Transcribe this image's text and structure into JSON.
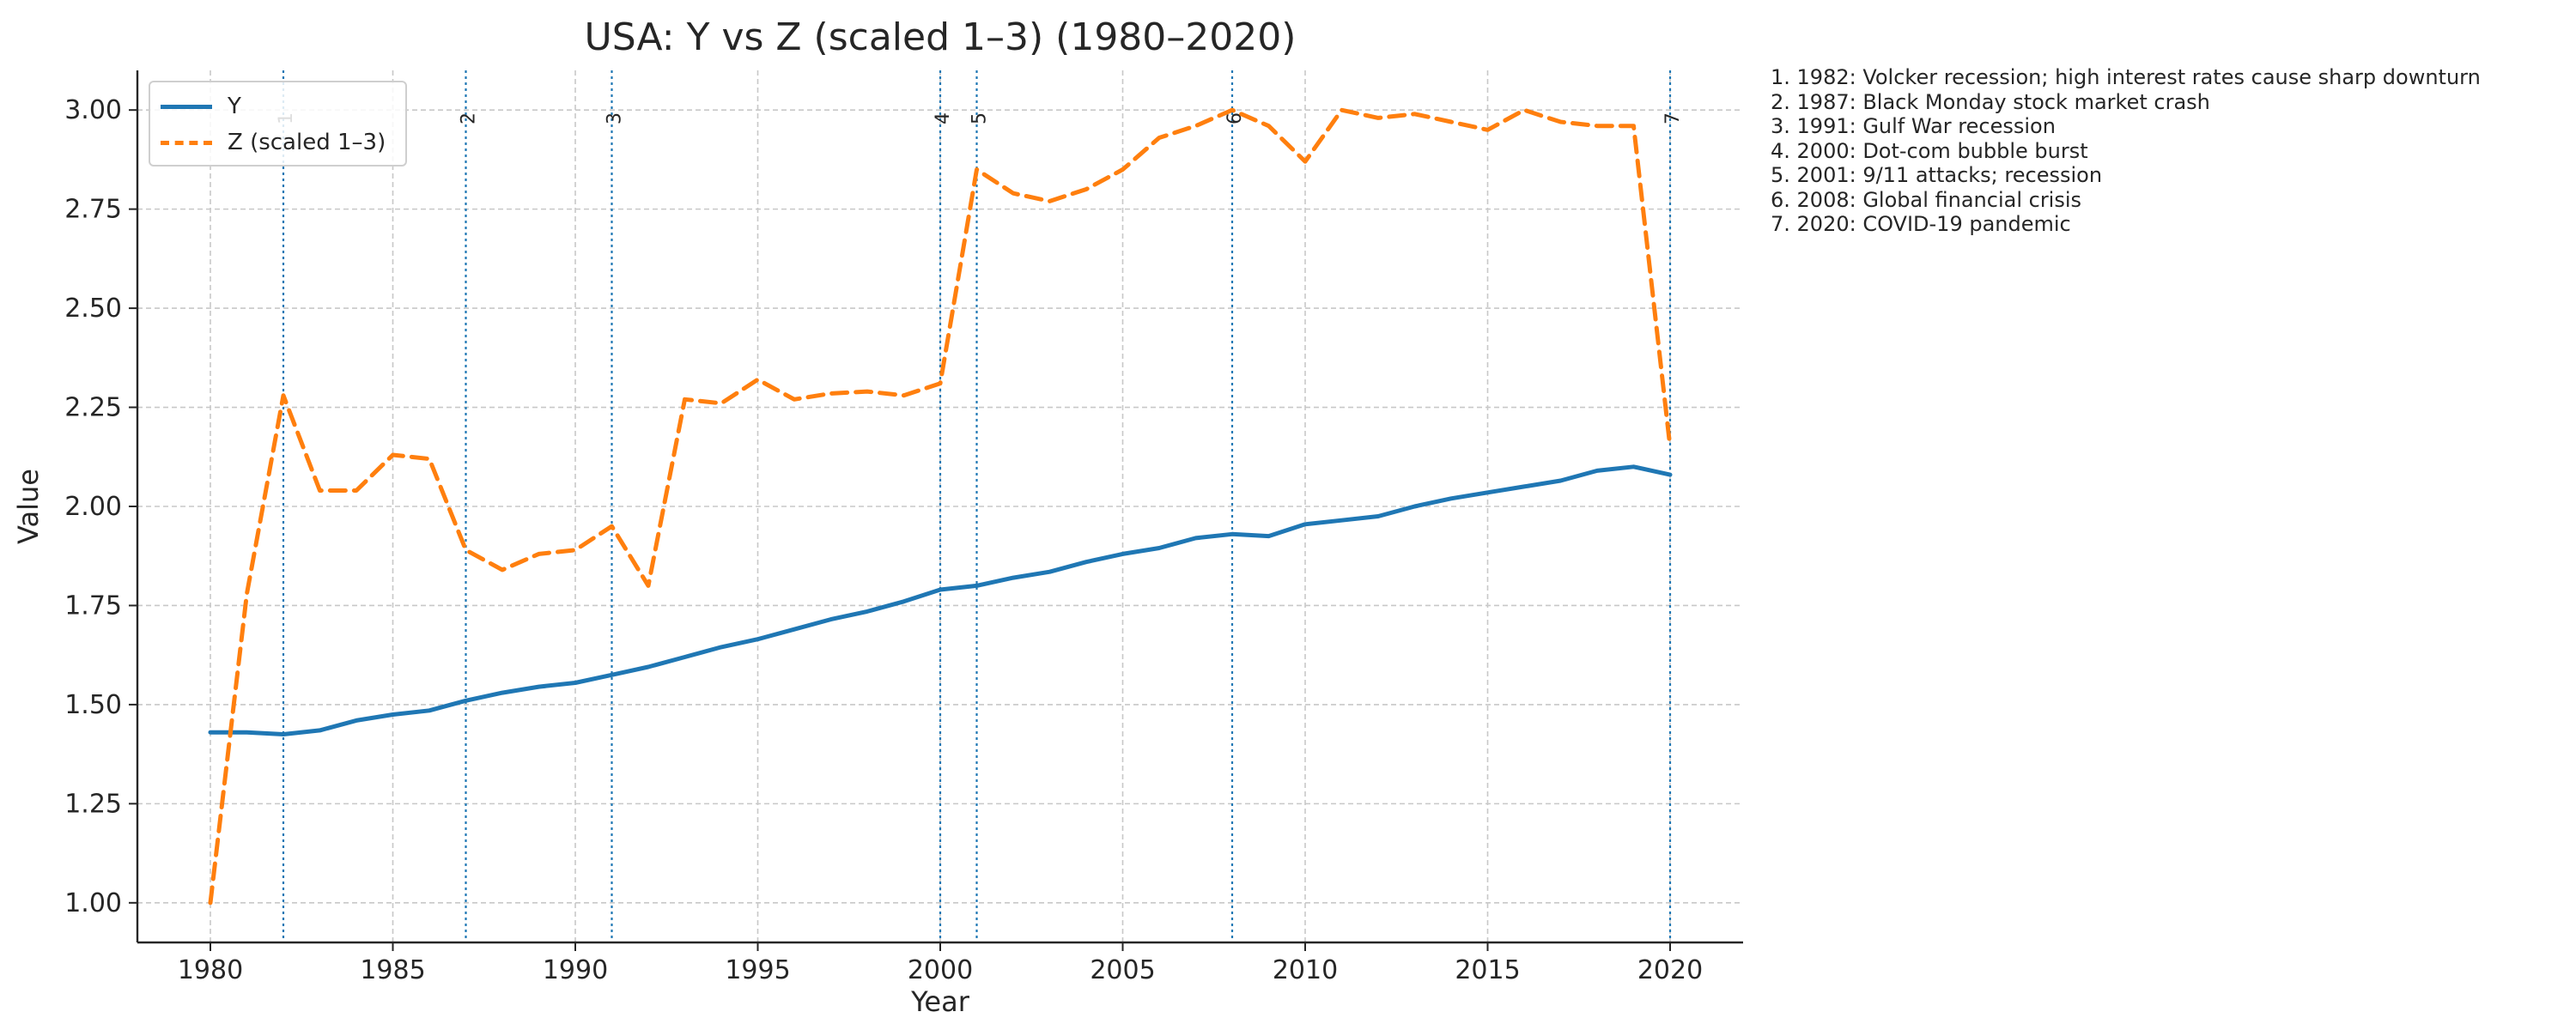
{
  "chart_data": {
    "type": "line",
    "title": "USA: Y vs Z (scaled 1–3) (1980–2020)",
    "xlabel": "Year",
    "ylabel": "Value",
    "xlim": [
      1978,
      2022
    ],
    "ylim": [
      0.9,
      3.1
    ],
    "xticks": [
      1980,
      1985,
      1990,
      1995,
      2000,
      2005,
      2010,
      2015,
      2020
    ],
    "yticks": [
      "1.00",
      "1.25",
      "1.50",
      "1.75",
      "2.00",
      "2.25",
      "2.50",
      "2.75",
      "3.00"
    ],
    "grid": true,
    "legend_position": "top-left",
    "x": [
      1980,
      1981,
      1982,
      1983,
      1984,
      1985,
      1986,
      1987,
      1988,
      1989,
      1990,
      1991,
      1992,
      1993,
      1994,
      1995,
      1996,
      1997,
      1998,
      1999,
      2000,
      2001,
      2002,
      2003,
      2004,
      2005,
      2006,
      2007,
      2008,
      2009,
      2010,
      2011,
      2012,
      2013,
      2014,
      2015,
      2016,
      2017,
      2018,
      2019,
      2020
    ],
    "series": [
      {
        "name": "Y",
        "color": "#1f77b4",
        "style": "solid",
        "values": [
          1.43,
          1.43,
          1.425,
          1.435,
          1.46,
          1.475,
          1.485,
          1.51,
          1.53,
          1.545,
          1.555,
          1.575,
          1.595,
          1.62,
          1.645,
          1.665,
          1.69,
          1.715,
          1.735,
          1.76,
          1.79,
          1.8,
          1.82,
          1.835,
          1.86,
          1.88,
          1.895,
          1.92,
          1.93,
          1.925,
          1.955,
          1.965,
          1.975,
          2.0,
          2.02,
          2.035,
          2.05,
          2.065,
          2.09,
          2.1,
          2.08
        ]
      },
      {
        "name": "Z (scaled 1–3)",
        "color": "#ff7f0e",
        "style": "dashed",
        "values": [
          1.0,
          1.78,
          2.28,
          2.04,
          2.04,
          2.13,
          2.12,
          1.89,
          1.84,
          1.88,
          1.89,
          1.95,
          1.8,
          2.27,
          2.26,
          2.32,
          2.27,
          2.285,
          2.29,
          2.28,
          2.31,
          2.85,
          2.79,
          2.77,
          2.8,
          2.85,
          2.93,
          2.96,
          3.0,
          2.96,
          2.87,
          3.0,
          2.98,
          2.99,
          2.97,
          2.95,
          3.0,
          2.97,
          2.96,
          2.96,
          2.15
        ]
      }
    ],
    "events": [
      {
        "num": "1",
        "year": 1982,
        "text": "1. 1982: Volcker recession; high interest rates cause sharp downturn"
      },
      {
        "num": "2",
        "year": 1987,
        "text": "2. 1987: Black Monday stock market crash"
      },
      {
        "num": "3",
        "year": 1991,
        "text": "3. 1991: Gulf War recession"
      },
      {
        "num": "4",
        "year": 2000,
        "text": "4. 2000: Dot-com bubble burst"
      },
      {
        "num": "5",
        "year": 2001,
        "text": "5. 2001: 9/11 attacks; recession"
      },
      {
        "num": "6",
        "year": 2008,
        "text": "6. 2008: Global financial crisis"
      },
      {
        "num": "7",
        "year": 2020,
        "text": "7. 2020: COVID-19 pandemic"
      }
    ],
    "event_line_color": "#1f77b4"
  }
}
